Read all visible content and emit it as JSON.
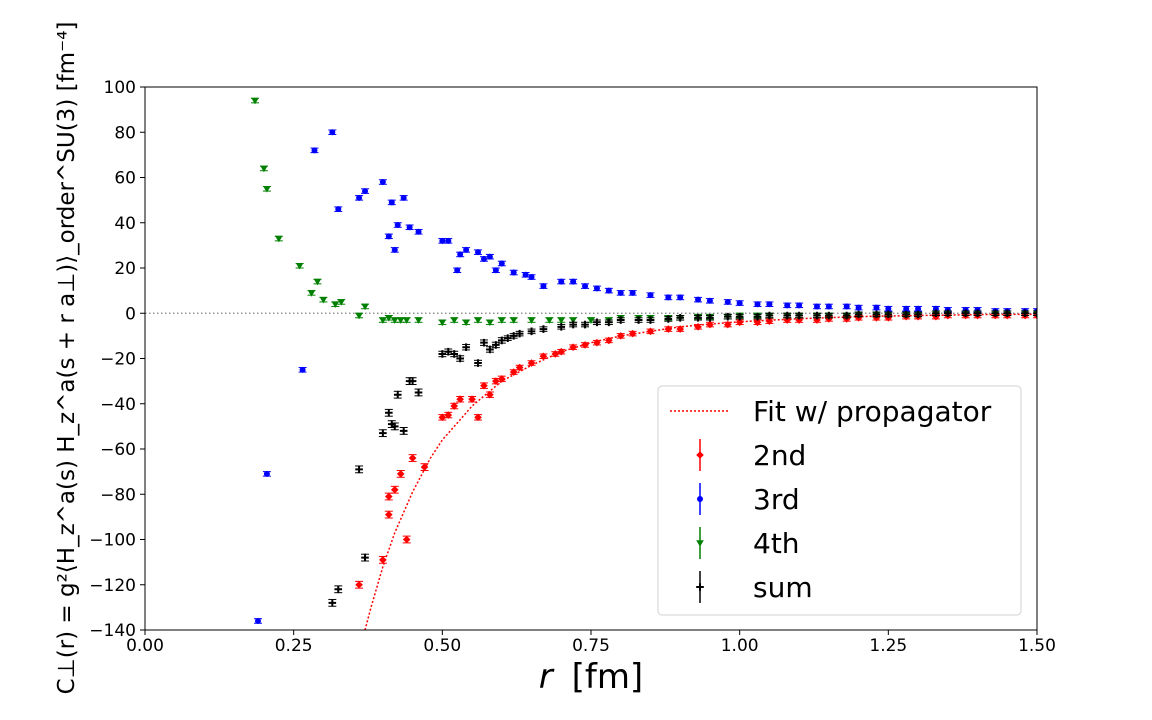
{
  "chart_data": {
    "type": "scatter",
    "title": "",
    "xlabel_main": "r",
    "xlabel_unit": "[fm]",
    "ylabel": "C⊥(r) = g²⟨H_z^a(s) H_z^a(s + r a⊥)⟩_order^SU(3) [fm⁻⁴]",
    "xlim": [
      0.0,
      1.5
    ],
    "ylim": [
      -140,
      100
    ],
    "xticks": [
      0.0,
      0.25,
      0.5,
      0.75,
      1.0,
      1.25,
      1.5
    ],
    "xtick_labels": [
      "0.00",
      "0.25",
      "0.50",
      "0.75",
      "1.00",
      "1.25",
      "1.50"
    ],
    "yticks": [
      -140,
      -120,
      -100,
      -80,
      -60,
      -40,
      -20,
      0,
      20,
      40,
      60,
      80,
      100
    ],
    "ytick_labels": [
      "−140",
      "−120",
      "−100",
      "−80",
      "−60",
      "−40",
      "−20",
      "0",
      "20",
      "40",
      "60",
      "80",
      "100"
    ],
    "grid": false,
    "legend_position": "lower-right",
    "zero_line": {
      "y": 0,
      "style": "dotted",
      "color": "#808080"
    },
    "fit": {
      "name": "Fit w/ propagator",
      "color": "#ff0000",
      "style": "dotted",
      "x": [
        0.37,
        0.38,
        0.4,
        0.42,
        0.45,
        0.48,
        0.5,
        0.55,
        0.6,
        0.65,
        0.7,
        0.75,
        0.8,
        0.85,
        0.9,
        0.95,
        1.0,
        1.1,
        1.2,
        1.3,
        1.4,
        1.5
      ],
      "y": [
        -140,
        -130,
        -112,
        -97,
        -79,
        -64,
        -56,
        -41,
        -30,
        -23,
        -17,
        -13,
        -10,
        -8,
        -6,
        -4.8,
        -3.8,
        -2.4,
        -1.5,
        -1.0,
        -0.6,
        -0.4
      ]
    },
    "series": [
      {
        "name": "2nd",
        "color": "#ff0000",
        "marker": "diamond",
        "x": [
          0.36,
          0.4,
          0.41,
          0.41,
          0.42,
          0.43,
          0.44,
          0.45,
          0.47,
          0.5,
          0.51,
          0.52,
          0.53,
          0.55,
          0.56,
          0.57,
          0.58,
          0.59,
          0.6,
          0.62,
          0.63,
          0.65,
          0.67,
          0.69,
          0.7,
          0.72,
          0.74,
          0.76,
          0.78,
          0.8,
          0.82,
          0.85,
          0.88,
          0.9,
          0.93,
          0.95,
          0.98,
          1.0,
          1.03,
          1.05,
          1.08,
          1.1,
          1.13,
          1.15,
          1.18,
          1.2,
          1.23,
          1.25,
          1.28,
          1.3,
          1.33,
          1.35,
          1.38,
          1.4,
          1.43,
          1.45,
          1.48,
          1.5
        ],
        "y": [
          -120,
          -109,
          -81,
          -89,
          -78,
          -71,
          -100,
          -64,
          -68,
          -46,
          -45,
          -41,
          -38,
          -38,
          -46,
          -32,
          -36,
          -30,
          -29,
          -26,
          -24,
          -22,
          -19,
          -18,
          -17,
          -15,
          -14,
          -13,
          -12,
          -10,
          -9,
          -8,
          -7,
          -7,
          -6,
          -5,
          -5,
          -4,
          -4,
          -3.5,
          -3,
          -3,
          -3,
          -2.5,
          -2.5,
          -2,
          -2,
          -2,
          -1.5,
          -1.5,
          -1.5,
          -1,
          -1,
          -1,
          -1,
          -1,
          -1,
          -1
        ],
        "yerr": [
          1.5,
          1.5,
          1.5,
          1.5,
          1.5,
          1.5,
          1.5,
          1.5,
          1.5,
          1.2,
          1.2,
          1.2,
          1.2,
          1.2,
          1.2,
          1.2,
          1.2,
          1.2,
          1.2,
          1,
          1,
          1,
          1,
          1,
          1,
          1,
          1,
          1,
          1,
          1,
          1,
          1,
          1,
          1,
          1,
          1,
          1,
          1,
          1,
          1,
          1,
          1,
          1,
          1,
          1,
          1,
          1,
          1,
          1,
          1,
          1,
          1,
          1,
          1,
          1,
          1,
          1,
          1
        ]
      },
      {
        "name": "3rd",
        "color": "#0000ff",
        "marker": "circle",
        "x": [
          0.19,
          0.205,
          0.265,
          0.285,
          0.315,
          0.325,
          0.36,
          0.37,
          0.4,
          0.41,
          0.415,
          0.42,
          0.425,
          0.435,
          0.445,
          0.46,
          0.5,
          0.51,
          0.525,
          0.53,
          0.54,
          0.56,
          0.57,
          0.58,
          0.59,
          0.6,
          0.62,
          0.64,
          0.65,
          0.67,
          0.7,
          0.72,
          0.74,
          0.76,
          0.78,
          0.8,
          0.82,
          0.85,
          0.88,
          0.9,
          0.93,
          0.95,
          0.98,
          1.0,
          1.03,
          1.05,
          1.08,
          1.1,
          1.13,
          1.15,
          1.18,
          1.2,
          1.23,
          1.25,
          1.28,
          1.3,
          1.33,
          1.35,
          1.38,
          1.4,
          1.43,
          1.45,
          1.48,
          1.5
        ],
        "y": [
          -136,
          -71,
          -25,
          72,
          80,
          46,
          51,
          54,
          58,
          34,
          49,
          28,
          39,
          51,
          38,
          36,
          32,
          32,
          19,
          26,
          28,
          27,
          24,
          25,
          19,
          22,
          18,
          17,
          16,
          12,
          14,
          14,
          12,
          11,
          10,
          9,
          9,
          8,
          7,
          7,
          6,
          5.5,
          5,
          4.5,
          4,
          4,
          3.5,
          3.5,
          3,
          3,
          3,
          2.5,
          2.5,
          2,
          2,
          2,
          2,
          1.5,
          1.5,
          1.5,
          1,
          1,
          1,
          1
        ],
        "yerr": [
          1,
          1,
          1,
          1,
          1,
          1,
          1,
          1,
          1,
          1,
          1,
          1,
          1,
          1,
          1,
          1,
          1,
          1,
          1,
          1,
          1,
          1,
          1,
          1,
          1,
          1,
          1,
          1,
          1,
          1,
          1,
          1,
          1,
          1,
          1,
          1,
          1,
          1,
          1,
          1,
          1,
          1,
          1,
          1,
          1,
          1,
          1,
          1,
          1,
          1,
          1,
          1,
          1,
          1,
          1,
          1,
          1,
          1,
          1,
          1,
          1,
          1,
          1,
          1
        ]
      },
      {
        "name": "4th",
        "color": "#008000",
        "marker": "triangle-down",
        "x": [
          0.185,
          0.2,
          0.205,
          0.225,
          0.26,
          0.28,
          0.29,
          0.3,
          0.32,
          0.33,
          0.36,
          0.37,
          0.4,
          0.41,
          0.42,
          0.43,
          0.44,
          0.46,
          0.5,
          0.52,
          0.54,
          0.56,
          0.58,
          0.6,
          0.62,
          0.65,
          0.68,
          0.7,
          0.72,
          0.75,
          0.78,
          0.8,
          0.83,
          0.85,
          0.88,
          0.9,
          0.93,
          0.95,
          0.98,
          1.0,
          1.03,
          1.05,
          1.08,
          1.1,
          1.13,
          1.15,
          1.18,
          1.2,
          1.23,
          1.25,
          1.28,
          1.3,
          1.33,
          1.35,
          1.38,
          1.4,
          1.43,
          1.45,
          1.48,
          1.5
        ],
        "y": [
          94,
          64,
          55,
          33,
          21,
          9,
          14,
          6,
          4,
          5,
          -1,
          3,
          -3,
          -2,
          -3,
          -3,
          -3,
          -3,
          -4,
          -3,
          -4,
          -3,
          -4,
          -3,
          -3,
          -3,
          -3,
          -3,
          -3,
          -3,
          -3,
          -2,
          -2,
          -2,
          -2,
          -2,
          -1.5,
          -1.5,
          -1.5,
          -1,
          -1,
          -1,
          -1,
          -1,
          -1,
          -1,
          -1,
          -0.5,
          -0.5,
          -0.5,
          -0.5,
          -0.5,
          0,
          0,
          0,
          0,
          0,
          0,
          0,
          0
        ],
        "yerr": [
          1,
          1,
          1,
          1,
          1,
          1,
          1,
          1,
          1,
          1,
          1,
          1,
          1,
          1,
          1,
          1,
          1,
          1,
          1,
          1,
          1,
          1,
          1,
          1,
          1,
          1,
          1,
          1,
          1,
          1,
          1,
          1,
          1,
          1,
          1,
          1,
          1,
          1,
          1,
          1,
          1,
          1,
          1,
          1,
          1,
          1,
          1,
          1,
          1,
          1,
          1,
          1,
          1,
          1,
          1,
          1,
          1,
          1,
          1,
          1
        ]
      },
      {
        "name": "sum",
        "color": "#000000",
        "marker": "plus",
        "x": [
          0.315,
          0.325,
          0.36,
          0.37,
          0.4,
          0.41,
          0.415,
          0.42,
          0.425,
          0.435,
          0.445,
          0.45,
          0.46,
          0.5,
          0.51,
          0.52,
          0.53,
          0.54,
          0.56,
          0.57,
          0.58,
          0.59,
          0.6,
          0.61,
          0.62,
          0.63,
          0.65,
          0.67,
          0.7,
          0.72,
          0.74,
          0.76,
          0.78,
          0.8,
          0.83,
          0.85,
          0.88,
          0.9,
          0.93,
          0.95,
          0.98,
          1.0,
          1.03,
          1.05,
          1.08,
          1.1,
          1.13,
          1.15,
          1.18,
          1.2,
          1.23,
          1.25,
          1.28,
          1.3,
          1.33,
          1.35,
          1.38,
          1.4,
          1.43,
          1.45,
          1.48,
          1.5
        ],
        "y": [
          -128,
          -122,
          -69,
          -108,
          -53,
          -44,
          -49,
          -50,
          -36,
          -52,
          -30,
          -30,
          -35,
          -18,
          -17,
          -18,
          -20,
          -15,
          -22,
          -13,
          -16,
          -14,
          -12,
          -11,
          -10,
          -9,
          -8,
          -7,
          -6,
          -5,
          -5,
          -4,
          -4,
          -3,
          -3,
          -3,
          -2.5,
          -2,
          -2,
          -2,
          -1.5,
          -1.5,
          -1.5,
          -1,
          -1,
          -1,
          -1,
          -1,
          -1,
          -0.5,
          -0.5,
          -0.5,
          -0.5,
          -0.5,
          0,
          0,
          0,
          0,
          0,
          0,
          0,
          0
        ],
        "yerr": [
          1.5,
          1.5,
          1.5,
          1.5,
          1.5,
          1.5,
          1.5,
          1.5,
          1.5,
          1.5,
          1.5,
          1.5,
          1.5,
          1.2,
          1.2,
          1.2,
          1.2,
          1.2,
          1.2,
          1.2,
          1.2,
          1.2,
          1.2,
          1,
          1,
          1,
          1,
          1,
          1,
          1,
          1,
          1,
          1,
          1,
          1,
          1,
          1,
          1,
          1,
          1,
          1,
          1,
          1,
          1,
          1,
          1,
          1,
          1,
          1,
          1,
          1,
          1,
          1,
          1,
          1,
          1,
          1,
          1,
          1,
          1,
          1,
          1
        ]
      }
    ]
  }
}
